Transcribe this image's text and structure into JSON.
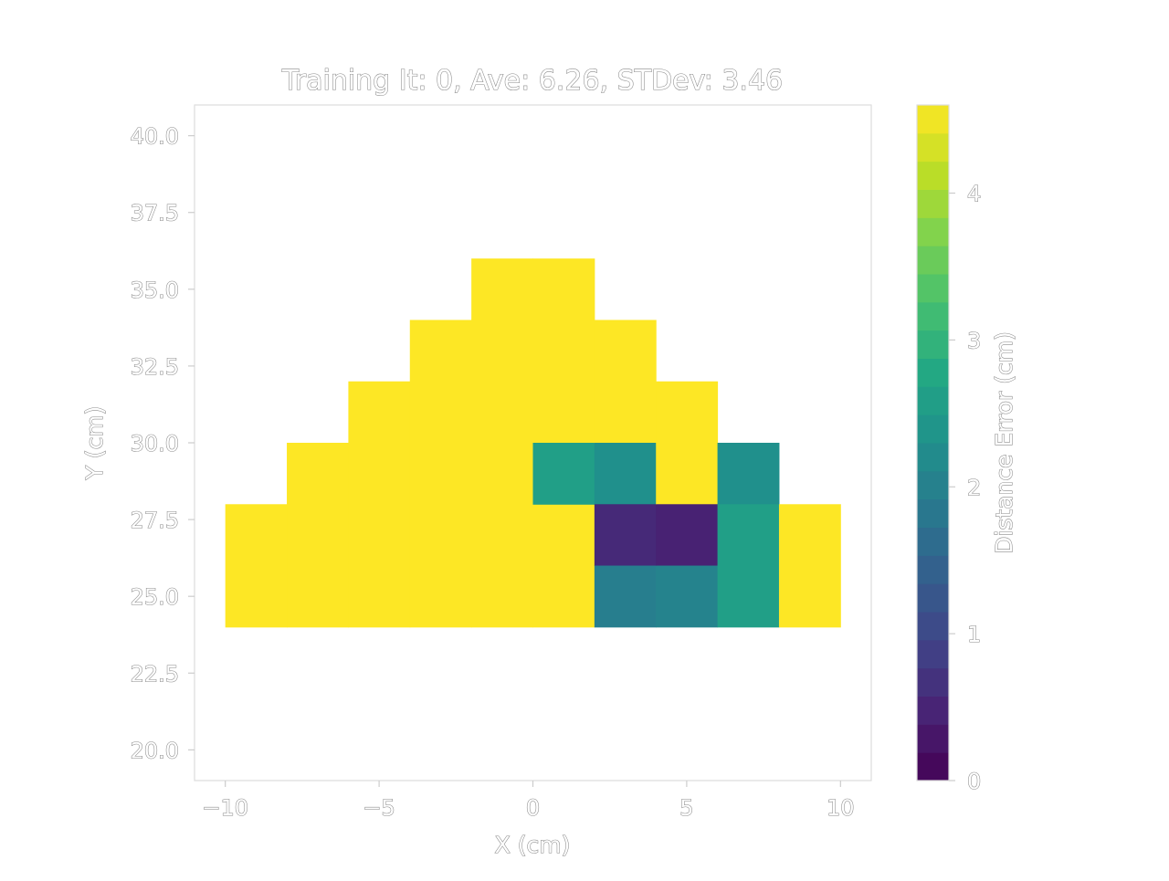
{
  "chart_data": {
    "type": "heatmap",
    "title": "Training It: 0, Ave: 6.26, STDev: 3.46",
    "xlabel": "X (cm)",
    "ylabel": "Y (cm)",
    "xlim": [
      -11,
      11
    ],
    "ylim": [
      19,
      41
    ],
    "xticks": [
      -10,
      -5,
      0,
      5,
      10
    ],
    "xtick_labels": [
      "−10",
      "−5",
      "0",
      "5",
      "10"
    ],
    "yticks": [
      20.0,
      22.5,
      25.0,
      27.5,
      30.0,
      32.5,
      35.0,
      37.5,
      40.0
    ],
    "ytick_labels": [
      "20.0",
      "22.5",
      "25.0",
      "27.5",
      "30.0",
      "32.5",
      "35.0",
      "37.5",
      "40.0"
    ],
    "colormap": "viridis",
    "colorbar": {
      "label": "Distance Error (cm)",
      "range": [
        0,
        4.6
      ],
      "ticks": [
        0,
        1,
        2,
        3,
        4
      ],
      "tick_labels": [
        "0",
        "1",
        "2",
        "3",
        "4"
      ],
      "levels": 24
    },
    "grid": false,
    "cells": [
      {
        "x0": -10,
        "x1": -8,
        "y0": 24,
        "y1": 28,
        "value": 4.6
      },
      {
        "x0": -8,
        "x1": -6,
        "y0": 24,
        "y1": 30,
        "value": 4.6
      },
      {
        "x0": -6,
        "x1": -4,
        "y0": 24,
        "y1": 32,
        "value": 4.6
      },
      {
        "x0": -4,
        "x1": -2,
        "y0": 24,
        "y1": 34,
        "value": 4.6
      },
      {
        "x0": -2,
        "x1": 0,
        "y0": 24,
        "y1": 36,
        "value": 4.6
      },
      {
        "x0": 0,
        "x1": 2,
        "y0": 28,
        "y1": 36,
        "value": 4.6
      },
      {
        "x0": 0,
        "x1": 2,
        "y0": 24,
        "y1": 28,
        "value": 4.6
      },
      {
        "x0": 0,
        "x1": 2,
        "y0": 28,
        "y1": 30,
        "value": 2.6
      },
      {
        "x0": 2,
        "x1": 4,
        "y0": 30,
        "y1": 34,
        "value": 4.6
      },
      {
        "x0": 2,
        "x1": 4,
        "y0": 28,
        "y1": 30,
        "value": 2.3
      },
      {
        "x0": 2,
        "x1": 4,
        "y0": 26,
        "y1": 28,
        "value": 0.55
      },
      {
        "x0": 2,
        "x1": 4,
        "y0": 24,
        "y1": 26,
        "value": 1.95
      },
      {
        "x0": 4,
        "x1": 6,
        "y0": 28,
        "y1": 32,
        "value": 4.6
      },
      {
        "x0": 4,
        "x1": 6,
        "y0": 26,
        "y1": 28,
        "value": 0.45
      },
      {
        "x0": 4,
        "x1": 6,
        "y0": 24,
        "y1": 26,
        "value": 2.05
      },
      {
        "x0": 6,
        "x1": 8,
        "y0": 28,
        "y1": 30,
        "value": 2.3
      },
      {
        "x0": 6,
        "x1": 8,
        "y0": 24,
        "y1": 28,
        "value": 2.6
      },
      {
        "x0": 8,
        "x1": 10,
        "y0": 24,
        "y1": 28,
        "value": 4.6
      }
    ]
  }
}
